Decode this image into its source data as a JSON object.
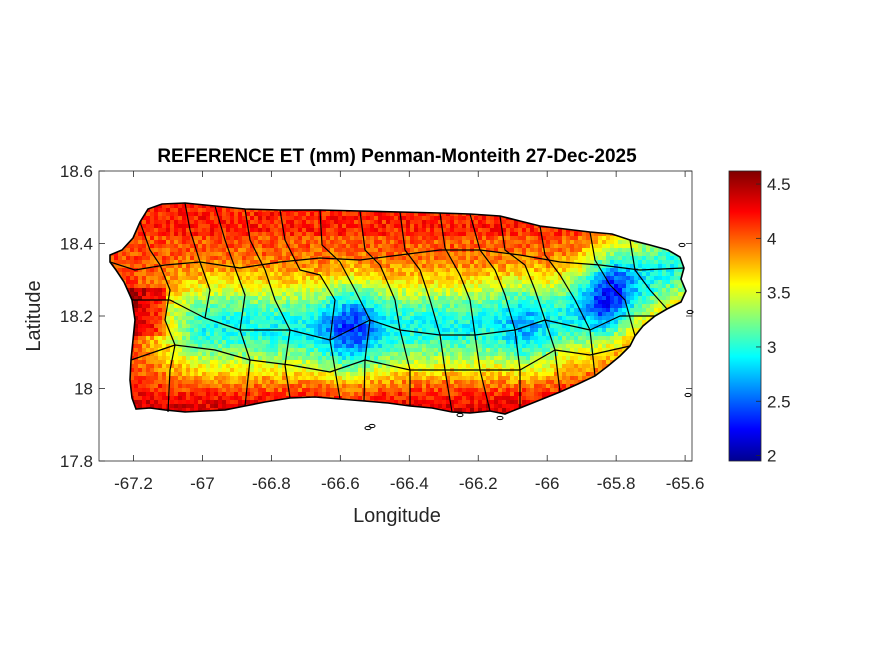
{
  "chart_data": {
    "type": "heatmap",
    "title": "REFERENCE ET (mm) Penman-Monteith 27-Dec-2025",
    "xlabel": "Longitude",
    "ylabel": "Latitude",
    "xlim": [
      -67.3,
      -65.58
    ],
    "ylim": [
      17.8,
      18.6
    ],
    "xticks": [
      -67.2,
      -67,
      -66.8,
      -66.6,
      -66.4,
      -66.2,
      -66,
      -65.8,
      -65.6
    ],
    "xtick_labels": [
      "-67.2",
      "-67",
      "-66.8",
      "-66.6",
      "-66.4",
      "-66.2",
      "-66",
      "-65.8",
      "-65.6"
    ],
    "yticks": [
      17.8,
      18,
      18.2,
      18.4,
      18.6
    ],
    "ytick_labels": [
      "17.8",
      "18",
      "18.2",
      "18.4",
      "18.6"
    ],
    "grid": false,
    "colormap": "jet",
    "colorbar": {
      "clim": [
        1.95,
        4.62
      ],
      "ticks": [
        2,
        2.5,
        3,
        3.5,
        4,
        4.5
      ],
      "tick_labels": [
        "2",
        "2.5",
        "3",
        "3.5",
        "4",
        "4.5"
      ],
      "placement": "right"
    },
    "field_summary": {
      "coast_typical": 4.1,
      "interior_ridge_typical": 3.0,
      "minimum_region_value": 2.2,
      "maximum_region_value": 4.6
    }
  },
  "colors": {
    "axis": "#262626",
    "outline": "#000000",
    "background": "#ffffff"
  }
}
